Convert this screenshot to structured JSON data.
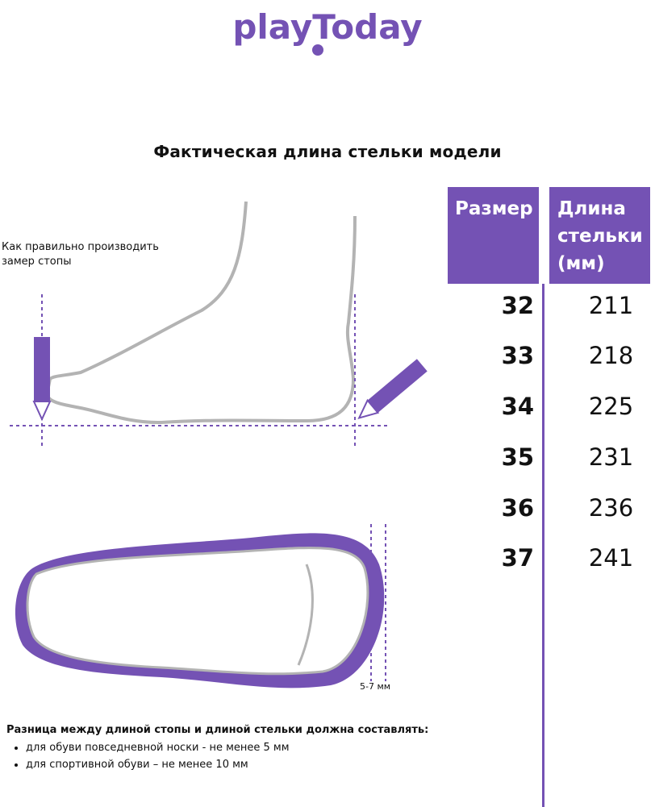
{
  "logo": {
    "text": "playToday",
    "color": "#7452b4"
  },
  "title": "Фактическая длина стельки модели",
  "table": {
    "headers": {
      "size": "Размер",
      "length": "Длина стельки (мм)"
    },
    "rows": [
      {
        "size": "32",
        "length": "211"
      },
      {
        "size": "33",
        "length": "218"
      },
      {
        "size": "34",
        "length": "225"
      },
      {
        "size": "35",
        "length": "231"
      },
      {
        "size": "36",
        "length": "236"
      },
      {
        "size": "37",
        "length": "241"
      }
    ]
  },
  "illustration": {
    "measure_note": "Как правильно производить замер стопы",
    "gap_label": "5-7 мм"
  },
  "footer": {
    "heading": "Разница между длиной стопы и длиной стельки должна составлять:",
    "items": [
      "для обуви повседневной носки -  не менее 5 мм",
      "для спортивной обуви – не менее 10 мм"
    ]
  },
  "colors": {
    "accent": "#7452b4",
    "outline": "#b3b3b3"
  }
}
